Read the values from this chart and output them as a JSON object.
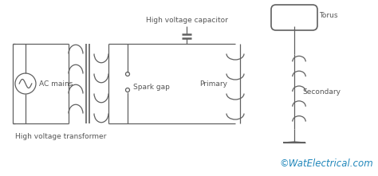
{
  "background_color": "#ffffff",
  "line_color": "#606060",
  "text_color": "#555555",
  "watermark_color": "#2288bb",
  "labels": {
    "ac_mains": "AC mains",
    "hvt": "High voltage transformer",
    "hvc": "High voltage capacitor",
    "spark_gap": "Spark gap",
    "primary": "Primary",
    "torus": "Torus",
    "secondary": "Secondary",
    "watermark": "©WatElectrical.com"
  },
  "font_size": 6.5,
  "watermark_font_size": 8.5
}
